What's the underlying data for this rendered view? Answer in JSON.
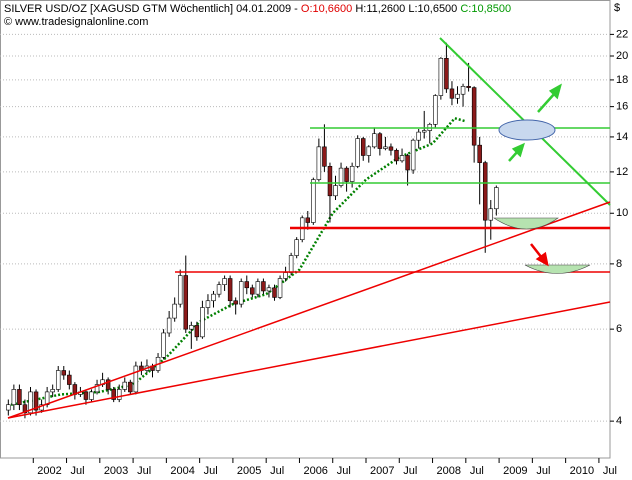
{
  "header": {
    "symbol": "SILVER USD/OZ [XAGUSD GTM  Wöchentlich] 04.01.2009 - ",
    "open": "O:10,6600",
    "high": "H:11,2600",
    "low": "L:10,6500",
    "close": "C:10,8500",
    "copyright": "© www.tradesignalonline.com",
    "currency": "$"
  },
  "chart_data": {
    "type": "candlestick",
    "log_scale": true,
    "grid": true,
    "up_color": "#ffffff",
    "down_color": "#8b1a1a",
    "ylim": [
      3.4,
      25.6
    ],
    "yticks": [
      4,
      6,
      8,
      10,
      12,
      14,
      16,
      18,
      20,
      22
    ],
    "xlim": [
      "2001-07",
      "2010-09"
    ],
    "xticks": [
      {
        "value": "2002-01",
        "label": "2002"
      },
      {
        "value": "2002-07",
        "label": "Jul"
      },
      {
        "value": "2003-01",
        "label": "2003"
      },
      {
        "value": "2003-07",
        "label": "Jul"
      },
      {
        "value": "2004-01",
        "label": "2004"
      },
      {
        "value": "2004-07",
        "label": "Jul"
      },
      {
        "value": "2005-01",
        "label": "2005"
      },
      {
        "value": "2005-07",
        "label": "Jul"
      },
      {
        "value": "2006-01",
        "label": "2006"
      },
      {
        "value": "2006-07",
        "label": "Jul"
      },
      {
        "value": "2007-01",
        "label": "2007"
      },
      {
        "value": "2007-07",
        "label": "Jul"
      },
      {
        "value": "2008-01",
        "label": "2008"
      },
      {
        "value": "2008-07",
        "label": "Jul"
      },
      {
        "value": "2009-01",
        "label": "2009"
      },
      {
        "value": "2009-07",
        "label": "Jul"
      },
      {
        "value": "2010-01",
        "label": "2010"
      },
      {
        "value": "2010-07",
        "label": "Jul"
      }
    ],
    "x": [
      "2001-08",
      "2001-09",
      "2001-10",
      "2001-11",
      "2001-12",
      "2002-01",
      "2002-02",
      "2002-03",
      "2002-04",
      "2002-05",
      "2002-06",
      "2002-07",
      "2002-08",
      "2002-09",
      "2002-10",
      "2002-11",
      "2002-12",
      "2003-01",
      "2003-02",
      "2003-03",
      "2003-04",
      "2003-05",
      "2003-06",
      "2003-07",
      "2003-08",
      "2003-09",
      "2003-10",
      "2003-11",
      "2003-12",
      "2004-01",
      "2004-02",
      "2004-03",
      "2004-04",
      "2004-05",
      "2004-06",
      "2004-07",
      "2004-08",
      "2004-09",
      "2004-10",
      "2004-11",
      "2004-12",
      "2005-01",
      "2005-02",
      "2005-03",
      "2005-04",
      "2005-05",
      "2005-06",
      "2005-07",
      "2005-08",
      "2005-09",
      "2005-10",
      "2005-11",
      "2005-12",
      "2006-01",
      "2006-02",
      "2006-03",
      "2006-04",
      "2006-05",
      "2006-06",
      "2006-07",
      "2006-08",
      "2006-09",
      "2006-10",
      "2006-11",
      "2006-12",
      "2007-01",
      "2007-02",
      "2007-03",
      "2007-04",
      "2007-05",
      "2007-06",
      "2007-07",
      "2007-08",
      "2007-09",
      "2007-10",
      "2007-11",
      "2007-12",
      "2008-01",
      "2008-02",
      "2008-03",
      "2008-04",
      "2008-05",
      "2008-06",
      "2008-07",
      "2008-08",
      "2008-09",
      "2008-10",
      "2008-11",
      "2008-12"
    ],
    "ohlc": [
      [
        4.2,
        4.4,
        4.1,
        4.3
      ],
      [
        4.3,
        4.7,
        4.2,
        4.6
      ],
      [
        4.6,
        4.7,
        4.2,
        4.3
      ],
      [
        4.3,
        4.4,
        4.05,
        4.15
      ],
      [
        4.15,
        4.65,
        4.1,
        4.55
      ],
      [
        4.55,
        4.6,
        4.1,
        4.2
      ],
      [
        4.2,
        4.4,
        4.15,
        4.3
      ],
      [
        4.3,
        4.65,
        4.25,
        4.55
      ],
      [
        4.55,
        4.7,
        4.45,
        4.6
      ],
      [
        4.6,
        5.1,
        4.55,
        5.0
      ],
      [
        5.0,
        5.1,
        4.8,
        4.9
      ],
      [
        4.9,
        5.0,
        4.6,
        4.7
      ],
      [
        4.7,
        4.75,
        4.4,
        4.5
      ],
      [
        4.5,
        4.65,
        4.45,
        4.55
      ],
      [
        4.55,
        4.6,
        4.3,
        4.4
      ],
      [
        4.4,
        4.6,
        4.35,
        4.55
      ],
      [
        4.55,
        4.8,
        4.5,
        4.7
      ],
      [
        4.7,
        4.95,
        4.65,
        4.8
      ],
      [
        4.8,
        4.85,
        4.5,
        4.6
      ],
      [
        4.6,
        4.65,
        4.35,
        4.4
      ],
      [
        4.4,
        4.7,
        4.35,
        4.6
      ],
      [
        4.6,
        4.85,
        4.55,
        4.75
      ],
      [
        4.75,
        4.8,
        4.5,
        4.55
      ],
      [
        4.55,
        5.2,
        4.5,
        5.1
      ],
      [
        5.1,
        5.2,
        4.9,
        5.0
      ],
      [
        5.0,
        5.25,
        4.95,
        5.1
      ],
      [
        5.1,
        5.15,
        4.85,
        5.0
      ],
      [
        5.0,
        5.4,
        4.95,
        5.3
      ],
      [
        5.3,
        6.0,
        5.25,
        5.9
      ],
      [
        5.9,
        6.5,
        5.8,
        6.3
      ],
      [
        6.3,
        6.9,
        6.2,
        6.7
      ],
      [
        6.7,
        7.8,
        6.6,
        7.6
      ],
      [
        7.6,
        8.3,
        5.9,
        6.0
      ],
      [
        6.0,
        6.2,
        5.5,
        6.1
      ],
      [
        6.1,
        6.2,
        5.7,
        5.8
      ],
      [
        5.8,
        6.8,
        5.75,
        6.6
      ],
      [
        6.6,
        7.0,
        6.4,
        6.8
      ],
      [
        6.8,
        7.1,
        6.6,
        7.0
      ],
      [
        7.0,
        7.4,
        6.9,
        7.3
      ],
      [
        7.3,
        7.6,
        7.1,
        7.5
      ],
      [
        7.5,
        7.6,
        6.6,
        6.8
      ],
      [
        6.8,
        6.9,
        6.4,
        6.7
      ],
      [
        6.7,
        7.5,
        6.6,
        7.4
      ],
      [
        7.4,
        7.6,
        7.0,
        7.2
      ],
      [
        7.2,
        7.3,
        6.9,
        7.0
      ],
      [
        7.0,
        7.5,
        6.9,
        7.4
      ],
      [
        7.4,
        7.5,
        7.0,
        7.1
      ],
      [
        7.1,
        7.3,
        6.9,
        7.2
      ],
      [
        7.2,
        7.3,
        6.8,
        6.9
      ],
      [
        6.9,
        7.6,
        6.85,
        7.5
      ],
      [
        7.5,
        7.9,
        7.4,
        7.7
      ],
      [
        7.7,
        8.4,
        7.6,
        8.3
      ],
      [
        8.3,
        9.0,
        8.2,
        8.9
      ],
      [
        8.9,
        9.9,
        8.8,
        9.8
      ],
      [
        9.8,
        10.1,
        9.3,
        9.6
      ],
      [
        9.6,
        11.7,
        9.5,
        11.6
      ],
      [
        11.6,
        13.9,
        11.5,
        13.4
      ],
      [
        13.4,
        14.8,
        12.0,
        12.3
      ],
      [
        12.3,
        12.5,
        9.6,
        10.8
      ],
      [
        10.8,
        11.8,
        10.6,
        11.3
      ],
      [
        11.3,
        12.5,
        11.2,
        12.2
      ],
      [
        12.2,
        12.3,
        11.0,
        11.5
      ],
      [
        11.5,
        12.5,
        11.2,
        12.3
      ],
      [
        12.3,
        14.1,
        12.2,
        13.9
      ],
      [
        13.9,
        14.0,
        12.6,
        12.9
      ],
      [
        12.9,
        13.5,
        12.5,
        13.4
      ],
      [
        13.4,
        14.6,
        13.3,
        14.2
      ],
      [
        14.2,
        14.3,
        12.9,
        13.3
      ],
      [
        13.3,
        14.0,
        13.2,
        13.4
      ],
      [
        13.4,
        13.6,
        12.9,
        13.2
      ],
      [
        13.2,
        13.3,
        12.4,
        12.6
      ],
      [
        12.6,
        13.3,
        12.5,
        12.9
      ],
      [
        12.9,
        13.0,
        11.3,
        12.1
      ],
      [
        12.1,
        13.9,
        11.9,
        13.8
      ],
      [
        13.8,
        14.5,
        13.3,
        14.3
      ],
      [
        14.3,
        15.7,
        13.9,
        14.4
      ],
      [
        14.4,
        14.9,
        13.6,
        14.8
      ],
      [
        14.8,
        16.9,
        14.6,
        16.8
      ],
      [
        16.8,
        19.9,
        16.5,
        19.8
      ],
      [
        19.8,
        21.2,
        17.0,
        17.3
      ],
      [
        17.3,
        17.9,
        16.1,
        16.6
      ],
      [
        16.6,
        17.5,
        16.2,
        16.9
      ],
      [
        16.9,
        17.7,
        16.0,
        17.5
      ],
      [
        17.5,
        19.4,
        17.1,
        17.4
      ],
      [
        17.4,
        17.5,
        12.5,
        13.5
      ],
      [
        13.5,
        14.0,
        10.4,
        12.5
      ],
      [
        12.5,
        12.6,
        8.4,
        9.7
      ],
      [
        9.7,
        10.6,
        8.9,
        10.2
      ],
      [
        10.2,
        11.3,
        9.9,
        11.2
      ]
    ],
    "moving_average": {
      "color": "#008000",
      "x": [
        "2001-09",
        "2002-06",
        "2003-01",
        "2003-07",
        "2004-01",
        "2004-07",
        "2005-01",
        "2005-07",
        "2006-01",
        "2006-07",
        "2007-01",
        "2007-07",
        "2008-01",
        "2008-05",
        "2008-07"
      ],
      "values": [
        4.3,
        4.5,
        4.55,
        4.7,
        5.3,
        6.2,
        6.7,
        7.0,
        7.8,
        10.0,
        11.6,
        12.8,
        13.6,
        15.2,
        15.0
      ]
    }
  }
}
